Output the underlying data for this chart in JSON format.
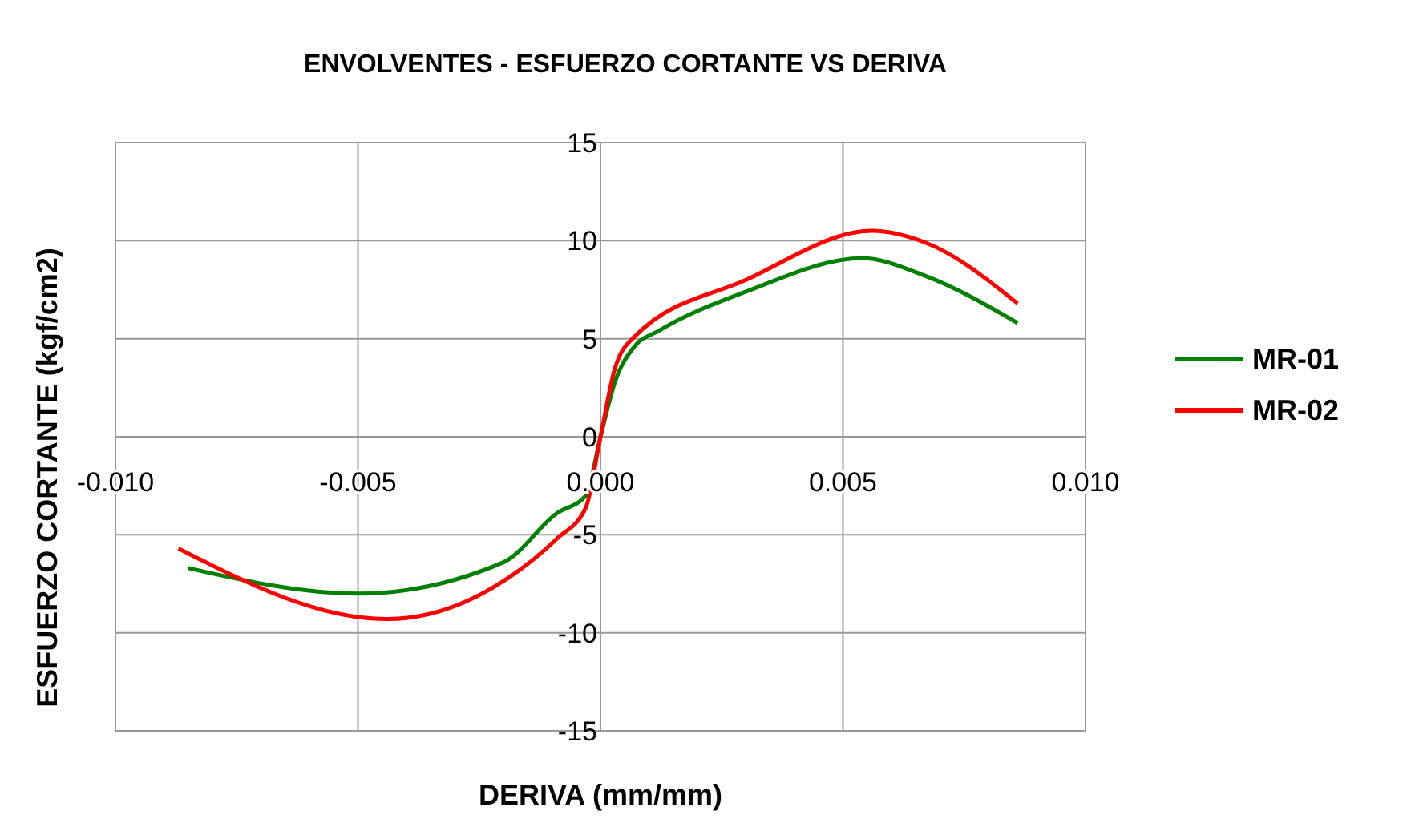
{
  "chart_data": {
    "type": "line",
    "title": "ENVOLVENTES - ESFUERZO CORTANTE  VS  DERIVA",
    "xlabel": "DERIVA (mm/mm)",
    "ylabel": "ESFUERZO CORTANTE (kgf/cm2)",
    "xlim": [
      -0.01,
      0.01
    ],
    "xticks": [
      {
        "value": -0.01,
        "label": "-0.010"
      },
      {
        "value": -0.005,
        "label": "-0.005"
      },
      {
        "value": 0,
        "label": "0.000"
      },
      {
        "value": 0.005,
        "label": "0.005"
      },
      {
        "value": 0.01,
        "label": "0.010"
      }
    ],
    "ylim": [
      -15,
      15
    ],
    "yticks": [
      -15,
      -10,
      -5,
      0,
      5,
      10,
      15
    ],
    "grid": true,
    "legend": "right",
    "marker": "none",
    "line_style": "solid",
    "series": [
      {
        "name": "MR-01",
        "color": "#008000",
        "x": [
          -0.0085,
          -0.005,
          -0.002,
          -0.0009,
          -0.0003,
          0,
          0.0003,
          0.0007,
          0.0012,
          0.003,
          0.0054,
          0.0067,
          0.0086
        ],
        "values": [
          -6.7,
          -8.0,
          -6.4,
          -3.9,
          -3.0,
          0,
          2.8,
          4.6,
          5.4,
          7.4,
          9.1,
          8.2,
          5.8
        ]
      },
      {
        "name": "MR-02",
        "color": "#ff0000",
        "x": [
          -0.0087,
          -0.0044,
          -0.0019,
          -0.0009,
          -0.0003,
          0,
          0.0003,
          0.0007,
          0.003,
          0.0056,
          0.0067,
          0.0086
        ],
        "values": [
          -5.7,
          -9.3,
          -7.2,
          -5.2,
          -3.6,
          0,
          3.5,
          5.1,
          8.0,
          10.5,
          9.9,
          6.8
        ]
      }
    ]
  }
}
